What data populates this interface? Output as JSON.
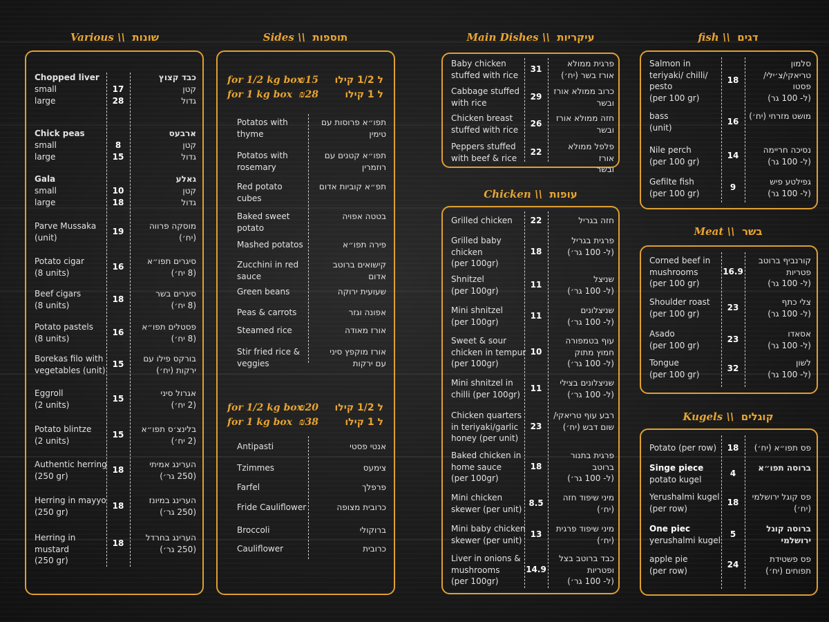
{
  "sections": {
    "various": {
      "title_en": "Various \\\\",
      "title_he": "שונות",
      "items": [
        {
          "en": "Chopped liver",
          "he": "כבד קצוץ",
          "price": "",
          "bold": true
        },
        {
          "en": "small",
          "he": "קטן",
          "price": "17"
        },
        {
          "en": "large",
          "he": "גדול",
          "price": "28"
        },
        {
          "en": "Chick peas",
          "he": "ארבעס",
          "price": "",
          "bold": true
        },
        {
          "en": "small",
          "he": "קטן",
          "price": "8"
        },
        {
          "en": "large",
          "he": "גדול",
          "price": "15"
        },
        {
          "en": "Gala",
          "he": "גאלע",
          "price": "",
          "bold": true
        },
        {
          "en": "small",
          "he": "קטן",
          "price": "10"
        },
        {
          "en": "large",
          "he": "גדול",
          "price": "18"
        },
        {
          "en": "Parve Mussaka\n(unit)",
          "he": "מוסקה פרווה\n(יח׳)",
          "price": "19"
        },
        {
          "en": "Potato cigar\n(8 units)",
          "he": "סיגרים תפו״א\n(8 יח׳)",
          "price": "16"
        },
        {
          "en": "Beef cigars\n(8 units)",
          "he": "סיגרים בשר\n(8 יח׳)",
          "price": "18"
        },
        {
          "en": "Potato pastels\n(8 units)",
          "he": "פסטלים תפו״א\n(8 יח׳)",
          "price": "16"
        },
        {
          "en": "Borekas filo with\nvegetables  (unit)",
          "he": "בורקס פילו עם\nירקות (יח׳)",
          "price": "15"
        },
        {
          "en": "Eggroll\n(2 units)",
          "he": "אגרול סיני\n(2 יח׳)",
          "price": "15"
        },
        {
          "en": "Potato blintze\n(2 units)",
          "he": "בלינצ׳ס תפו״א\n(2 יח׳)",
          "price": "15"
        },
        {
          "en": "Authentic herring\n(250 gr)",
          "he": "הערינג אמיתי\n(250 גר׳)",
          "price": "18"
        },
        {
          "en": "Herring in mayyo\n(250 gr)",
          "he": "הערינג במיונז\n(250 גר׳)",
          "price": "18"
        },
        {
          "en": "Herring in mustard\n(250 gr)",
          "he": "הערינג בחרדל\n(250 גר׳)",
          "price": "18"
        }
      ]
    },
    "sides": {
      "title_en": "Sides \\\\",
      "title_he": "תוספות",
      "group1_prices": [
        {
          "en": "for 1/2 kg box",
          "price": "₪15",
          "he": "ל 1/2 קילו"
        },
        {
          "en": "for 1 kg box",
          "price": "₪28",
          "he": "ל 1 קילו"
        }
      ],
      "group1_items": [
        {
          "en": "Potatos with\nthyme",
          "he": "תפו״א פרוסות עם\nטימין"
        },
        {
          "en": "Potatos with\nrosemary",
          "he": "תפו״א קטנים עם\nרוזמרין"
        },
        {
          "en": "Red potato cubes",
          "he": "תפ״א קוביות אדום"
        },
        {
          "en": "Baked sweet\npotato",
          "he": "בטטה אפויה"
        },
        {
          "en": "Mashed potatos",
          "he": "פירה תפו״א"
        },
        {
          "en": "Zucchini in red\nsauce",
          "he": "קישואים ברוטב\nאדום"
        },
        {
          "en": "Green beans",
          "he": "שעועית ירוקה"
        },
        {
          "en": "Peas & carrots",
          "he": "אפונה וגזר"
        },
        {
          "en": "Steamed rice",
          "he": "אורז מאודה"
        },
        {
          "en": "Stir fried rice &\nveggies",
          "he": "אורז מוקפץ סיני\nעם ירקות"
        }
      ],
      "group2_prices": [
        {
          "en": "for 1/2 kg box",
          "price": "₪20",
          "he": "ל 1/2 קילו"
        },
        {
          "en": "for 1 kg box",
          "price": "₪38",
          "he": "ל 1 קילו"
        }
      ],
      "group2_items": [
        {
          "en": "Antipasti",
          "he": "אנטי פסטי"
        },
        {
          "en": "Tzimmes",
          "he": "צימעס"
        },
        {
          "en": "Farfel",
          "he": "פרפלך"
        },
        {
          "en": "Fride Cauliflower",
          "he": "כרובית מצופה"
        },
        {
          "en": "Broccoli",
          "he": "ברוקולי"
        },
        {
          "en": "Cauliflower",
          "he": "כרובית"
        }
      ]
    },
    "main": {
      "title_en": "Main Dishes \\\\",
      "title_he": "עיקריות",
      "items": [
        {
          "en": "Baby chicken\nstuffed with rice",
          "he": "פרגית ממולא\nאורז בשר (יח׳)",
          "price": "31"
        },
        {
          "en": "Cabbage stuffed\nwith rice",
          "he": "כרוב ממולא אורז\nובשר",
          "price": "29"
        },
        {
          "en": "Chicken breast\nstuffed with rice",
          "he": "חזה ממולא אורז\nובשר",
          "price": "26"
        },
        {
          "en": "Peppers stuffed\nwith beef & rice",
          "he": "פלפל ממולא אורז\nובשר",
          "price": "22"
        }
      ]
    },
    "chicken": {
      "title_en": "Chicken \\\\",
      "title_he": "עופות",
      "items": [
        {
          "en": "Grilled chicken",
          "he": "חזה בגריל",
          "price": "22"
        },
        {
          "en": "Grilled baby\nchicken\n(per 100gr)",
          "he": "פרגית בגריל\n(ל- 100 גר׳)",
          "price": "18"
        },
        {
          "en": "Shnitzel\n(per 100gr)",
          "he": "שניצל\n(ל- 100 גר׳)",
          "price": "11"
        },
        {
          "en": "Mini shnitzel\n(per 100gr)",
          "he": "שניצלונים\n(ל- 100 גר׳)",
          "price": "11"
        },
        {
          "en": "Sweet & sour\nchicken in tempur\n(per 100gr)",
          "he": "עוף בטמפורה\nחמוץ מתוק\n(ל- 100 גר׳)",
          "price": "10"
        },
        {
          "en": "Mini shnitzel in\nchilli (per 100gr)",
          "he": "שניצלונים בצילי\n(ל- 100 גר׳)",
          "price": "11"
        },
        {
          "en": "Chicken quarters\nin teriyaki/garlic\nhoney (per unit)",
          "he": "רבע עוף טריאקי/\nשום דבש (יח׳)",
          "price": "23"
        },
        {
          "en": "Baked chicken in\nhome sauce\n(per 100gr)",
          "he": "פרגית בתנור\nברוטב\n(ל- 100 גר׳)",
          "price": "18"
        },
        {
          "en": "Mini chicken\nskewer (per unit)",
          "he": "מיני שיפוד חזה\n(יח׳)",
          "price": "8.5"
        },
        {
          "en": "Mini baby chicken\nskewer (per unit)",
          "he": "מיני שיפוד פרגית\n(יח׳)",
          "price": "13"
        },
        {
          "en": "Liver in onions &\nmushrooms\n(per 100gr)",
          "he": "כבד ברוטב בצל\nופטריות\n(ל- 100 גר׳)",
          "price": "14.9"
        }
      ]
    },
    "fish": {
      "title_en": "fish \\\\",
      "title_he": "דגים",
      "items": [
        {
          "en": "Salmon in\nteriyaki/ chilli/\npesto\n(per 100 gr)",
          "he": "סלמון\nטריאקי/צ׳ילי/\nפסטו\n(ל- 100 גר)",
          "price": "18"
        },
        {
          "en": "bass\n(unit)",
          "he": "מושט מזרחי (יח׳)",
          "price": "16"
        },
        {
          "en": "Nile perch\n(per 100 gr)",
          "he": "נסיכה חריימה\n(ל- 100 גר)",
          "price": "14"
        },
        {
          "en": "Gefilte fish\n(per 100 gr)",
          "he": "גפילטע פיש\n(ל- 100 גר)",
          "price": "9"
        }
      ]
    },
    "meat": {
      "title_en": "Meat \\\\",
      "title_he": "בשר",
      "items": [
        {
          "en": "Corned beef in\nmushrooms\n(per 100 gr)",
          "he": "קורנביף ברוטב\nפטריות\n(ל- 100 גר)",
          "price": "16.9"
        },
        {
          "en": "Shoulder roast\n(per 100 gr)",
          "he": "צלי כתף\n(ל- 100 גר)",
          "price": "23"
        },
        {
          "en": "Asado\n(per 100 gr)",
          "he": "אסאדו\n(ל- 100 גר)",
          "price": "23"
        },
        {
          "en": "Tongue\n(per 100 gr)",
          "he": "לשון\n(ל- 100 גר)",
          "price": "32"
        }
      ]
    },
    "kugels": {
      "title_en": "Kugels \\\\",
      "title_he": "קוגלים",
      "items": [
        {
          "en": "Potato (per row)",
          "he": "פס תפו״א (יח׳)",
          "price": "18"
        },
        {
          "en": "Singe piece\npotato kugel",
          "he": "ברוסה תפו״א",
          "price": "4",
          "bold_first": true
        },
        {
          "en": "Yerushalmi kugel\n(per row)",
          "he": "פס קוגל ירושלמי\n(יח׳)",
          "price": "18"
        },
        {
          "en": "One piec\nyerushalmi kugel",
          "he": "ברוסה קוגל\nירושלמי",
          "price": "5",
          "bold_first": true
        },
        {
          "en": "apple pie\n(per row)",
          "he": "פס פשטידת\nתפוחים (יח׳)",
          "price": "24"
        }
      ]
    }
  }
}
